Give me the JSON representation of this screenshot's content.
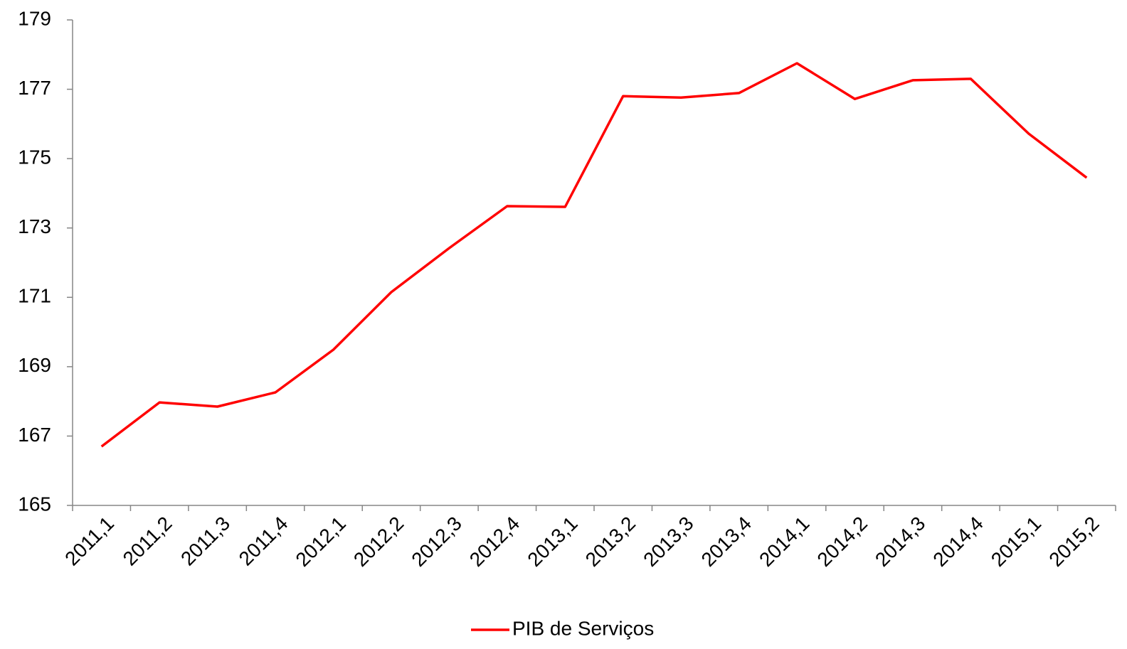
{
  "chart_data": {
    "type": "line",
    "categories": [
      "2011,1",
      "2011,2",
      "2011,3",
      "2011,4",
      "2012,1",
      "2012,2",
      "2012,3",
      "2012,4",
      "2013,1",
      "2013,2",
      "2013,3",
      "2013,4",
      "2014,1",
      "2014,2",
      "2014,3",
      "2014,4",
      "2015,1",
      "2015,2"
    ],
    "series": [
      {
        "name": "PIB de Serviços",
        "color": "#ff0000",
        "values": [
          166.7,
          167.97,
          167.85,
          168.26,
          169.49,
          171.15,
          172.42,
          173.63,
          173.61,
          176.8,
          176.76,
          176.89,
          177.75,
          176.72,
          177.26,
          177.3,
          175.72,
          174.45
        ]
      }
    ],
    "ylim": [
      165,
      179
    ],
    "yticks": [
      165,
      167,
      169,
      171,
      173,
      175,
      177,
      179
    ],
    "grid": false,
    "legend": "bottom"
  }
}
